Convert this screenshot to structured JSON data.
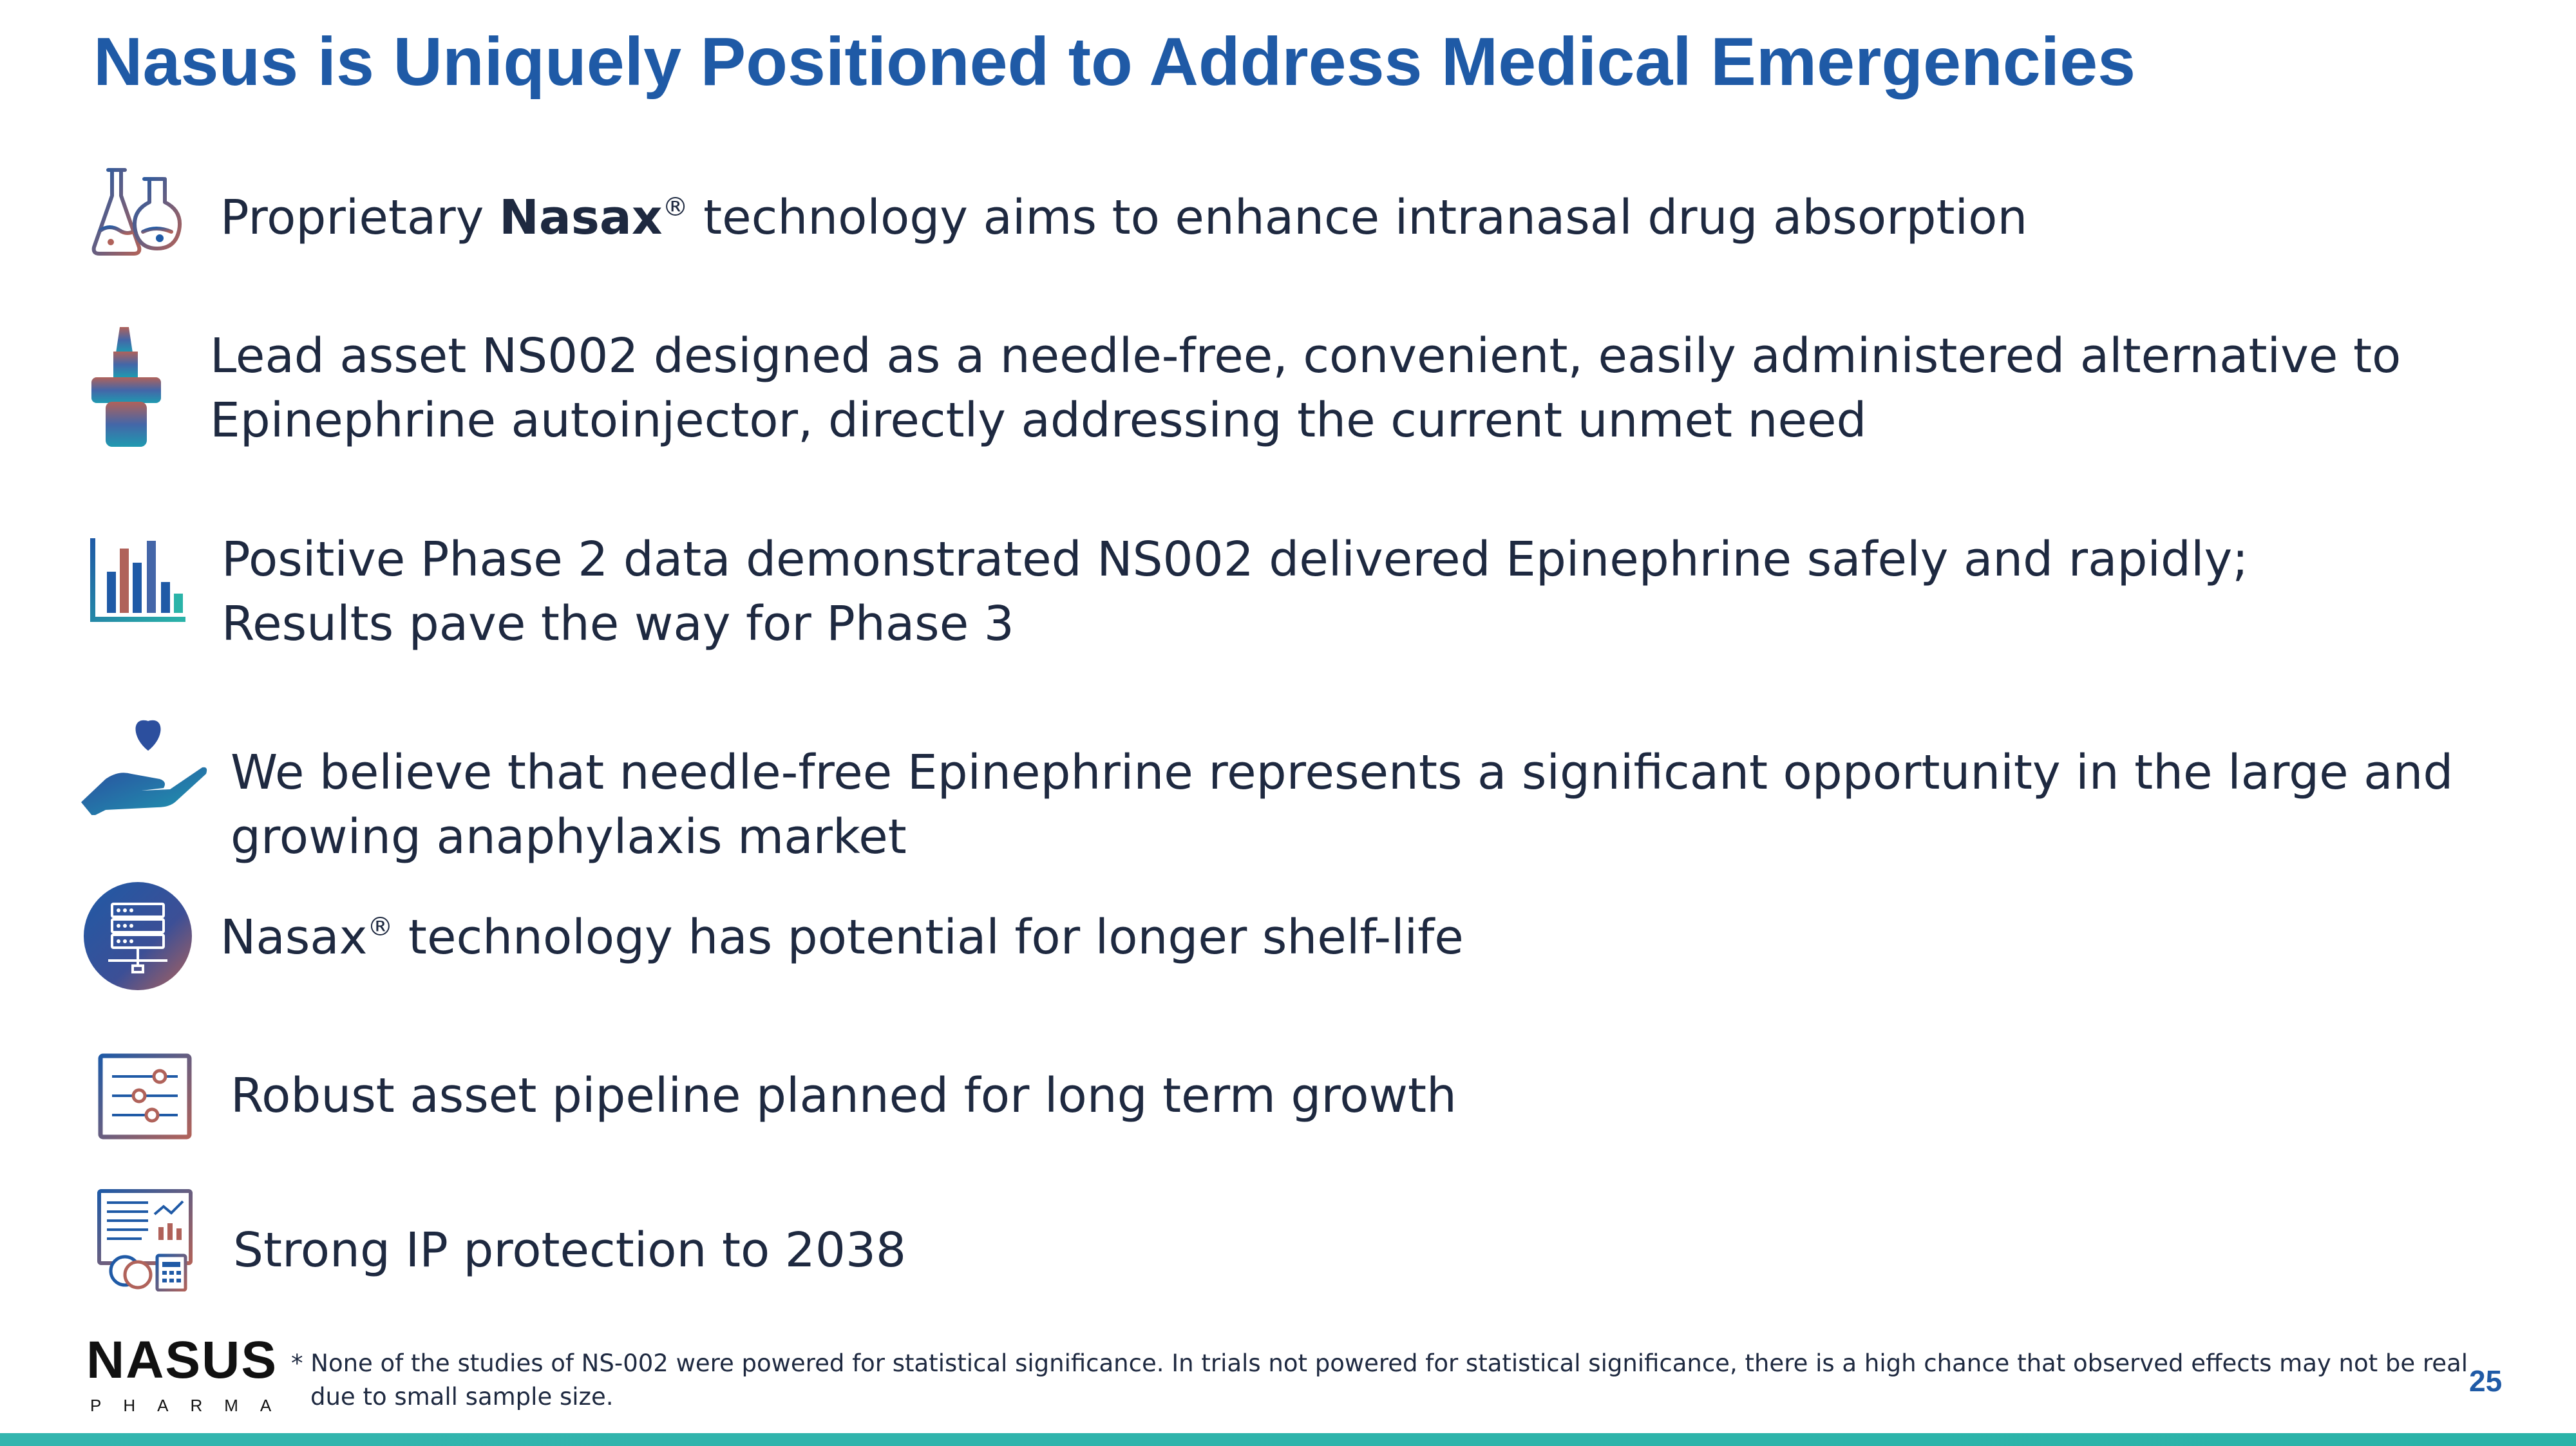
{
  "title": "Nasus is Uniquely Positioned to Address Medical Emergencies",
  "items": [
    {
      "icon": "flask-icon",
      "pre": "Proprietary ",
      "bold": "Nasax",
      "reg": "®",
      "post": " technology aims to enhance intranasal drug absorption"
    },
    {
      "icon": "nasal-spray-icon",
      "line1": "Lead asset NS002 designed as a needle-free, convenient, easily administered alternative to",
      "line2": "Epinephrine autoinjector, directly addressing the current unmet need"
    },
    {
      "icon": "bar-chart-icon",
      "line1": "Positive Phase 2 data demonstrated NS002 delivered Epinephrine safely and rapidly;",
      "line2": "Results pave the way for Phase 3"
    },
    {
      "icon": "heart-hand-icon",
      "line1": "We believe that needle-free Epinephrine represents a significant opportunity in the large and",
      "line2": "growing anaphylaxis market"
    },
    {
      "icon": "server-network-icon",
      "pre": "Nasax",
      "reg": "®",
      "post": " technology has potential for longer shelf-life"
    },
    {
      "icon": "sliders-icon",
      "text": "Robust asset pipeline planned for long term growth"
    },
    {
      "icon": "finance-report-icon",
      "text": "Strong IP protection to 2038"
    }
  ],
  "footnote": {
    "line1": "* None of the studies of NS-002 were powered for statistical significance. In trials not powered for statistical significance, there is a high chance that observed effects may not be real",
    "line2": "due to small sample size."
  },
  "logo": {
    "word": "NASUS",
    "sub": "PHARMA"
  },
  "page_number": "25",
  "colors": {
    "title": "#1f5aa6",
    "accent": "#2ab3a8",
    "icon_blue": "#1f5aa6",
    "icon_warm": "#b0625a"
  }
}
